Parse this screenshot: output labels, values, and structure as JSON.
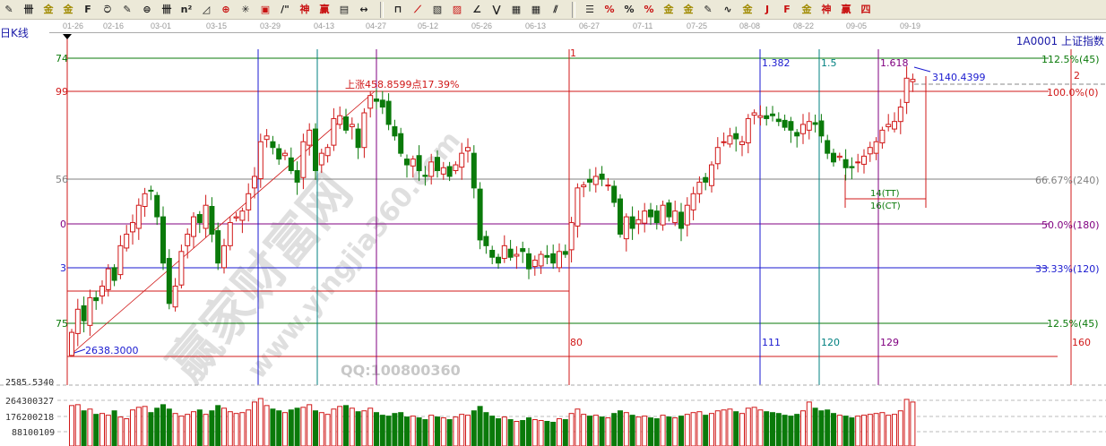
{
  "toolbar": {
    "icons": [
      {
        "name": "pen-icon",
        "glyph": "✎"
      },
      {
        "name": "parallel-lines-icon",
        "glyph": "卌"
      },
      {
        "name": "gold-split-icon",
        "glyph": "金"
      },
      {
        "name": "gold-split-2-icon",
        "glyph": "金"
      },
      {
        "name": "fib-f-icon",
        "glyph": "F"
      },
      {
        "name": "spiral-icon",
        "glyph": "ට"
      },
      {
        "name": "pen-line-icon",
        "glyph": "✎"
      },
      {
        "name": "circle-cycle-icon",
        "glyph": "⊜"
      },
      {
        "name": "time-lines-icon",
        "glyph": "卌"
      },
      {
        "name": "n2-icon",
        "glyph": "n²"
      },
      {
        "name": "triangle-icon",
        "glyph": "◿"
      },
      {
        "name": "target-icon",
        "glyph": "⊕"
      },
      {
        "name": "star-icon",
        "glyph": "✳"
      },
      {
        "name": "square-icon",
        "glyph": "▣"
      },
      {
        "name": "slash-icon",
        "glyph": "/\""
      },
      {
        "name": "shen-icon",
        "glyph": "神"
      },
      {
        "name": "ying-icon",
        "glyph": "赢"
      },
      {
        "name": "ruler-icon",
        "glyph": "▤"
      },
      {
        "name": "width-icon",
        "glyph": "↔"
      },
      {
        "name": "box-icon",
        "glyph": "⊓"
      },
      {
        "name": "fan-icon",
        "glyph": "⟋"
      },
      {
        "name": "gann-box-icon",
        "glyph": "▧"
      },
      {
        "name": "gann-square-icon",
        "glyph": "▨"
      },
      {
        "name": "angle-icon",
        "glyph": "∠"
      },
      {
        "name": "zigzag-icon",
        "glyph": "⋁"
      },
      {
        "name": "grid-icon",
        "glyph": "▦"
      },
      {
        "name": "grid-2-icon",
        "glyph": "▦"
      },
      {
        "name": "channel-icon",
        "glyph": "⫽"
      },
      {
        "name": "levels-icon",
        "glyph": "☰"
      },
      {
        "name": "percent-red-icon",
        "glyph": "%"
      },
      {
        "name": "percent-icon",
        "glyph": "%"
      },
      {
        "name": "percent-lines-icon",
        "glyph": "%"
      },
      {
        "name": "gold-circle-icon",
        "glyph": "金"
      },
      {
        "name": "gold-lines-icon",
        "glyph": "金"
      },
      {
        "name": "pen-bar-icon",
        "glyph": "✎"
      },
      {
        "name": "wave-icon",
        "glyph": "∿"
      },
      {
        "name": "gold-bar-icon",
        "glyph": "金"
      },
      {
        "name": "j-fan-icon",
        "glyph": "J"
      },
      {
        "name": "f-fan-icon",
        "glyph": "F"
      },
      {
        "name": "gold-fan-icon",
        "glyph": "金"
      },
      {
        "name": "shen-fan-icon",
        "glyph": "神"
      },
      {
        "name": "ying-fan-icon",
        "glyph": "赢"
      },
      {
        "name": "si-fan-icon",
        "glyph": "四"
      }
    ]
  },
  "header": {
    "period": "日K线",
    "symbol": "1A0001  上证指数"
  },
  "date_axis": [
    "01-26",
    "02-16",
    "03-01",
    "03-15",
    "03-29",
    "04-13",
    "04-27",
    "05-12",
    "05-26",
    "06-13",
    "06-27",
    "07-11",
    "07-25",
    "08-08",
    "08-22",
    "09-05",
    "09-19"
  ],
  "left_axis": {
    "l1": "74",
    "l2": "99",
    "l3": "56",
    "l4": "0",
    "l5": "3",
    "l6": "75",
    "bottom": "2585.5340"
  },
  "levels": {
    "p1125": "112.5%(45)",
    "p100": "100.0%(0)",
    "p6667": "66.67%(240)",
    "p50": "50.0%(180)",
    "p3333": "33.33%(120)",
    "p125": "12.5%(45)"
  },
  "time_lines": {
    "t1_top": "1",
    "t1_bot": "80",
    "t2_top": "1.382",
    "t2_bot": "111",
    "t3_top": "1.5",
    "t3_bot": "120",
    "t4_top": "1.618",
    "t4_bot": "129",
    "t5_top": "2",
    "t5_bot": "160"
  },
  "annotations": {
    "rise": "上涨458.8599点17.39%",
    "low": "2638.3000",
    "high": "3140.4399",
    "tt": "14(TT)",
    "ct": "16(CT)"
  },
  "volume_axis": {
    "v3": "264300327",
    "v2": "176200218",
    "v1": "88100109"
  },
  "watermark": {
    "site": "赢家财富网",
    "url": "www.yingjia360.com",
    "qq": "QQ:100800360"
  },
  "colors": {
    "up": "#d01818",
    "down": "#0a7a0a",
    "blue": "#1a1ad0",
    "teal": "#008080",
    "purple": "#800080",
    "grey": "#808080"
  },
  "chart_data": {
    "type": "candlestick",
    "closes": [
      2680,
      2720,
      2700,
      2740,
      2735,
      2760,
      2790,
      2770,
      2830,
      2850,
      2870,
      2900,
      2920,
      2925,
      2880,
      2800,
      2730,
      2760,
      2820,
      2850,
      2880,
      2870,
      2900,
      2850,
      2800,
      2830,
      2870,
      2880,
      2890,
      2920,
      2950,
      3010,
      3020,
      3000,
      2980,
      2990,
      2960,
      2940,
      3010,
      3030,
      2960,
      2990,
      3000,
      3050,
      3055,
      3030,
      3040,
      3000,
      3060,
      3090,
      3080,
      3070,
      3040,
      3020,
      2990,
      2970,
      2980,
      2960,
      2950,
      2975,
      2960,
      2965,
      2950,
      2970,
      2990,
      3000,
      2930,
      2840,
      2830,
      2810,
      2800,
      2830,
      2810,
      2815,
      2820,
      2790,
      2805,
      2815,
      2810,
      2800,
      2820,
      2815,
      2870,
      2930,
      2935,
      2940,
      2950,
      2945,
      2935,
      2905,
      2850,
      2880,
      2860,
      2875,
      2890,
      2880,
      2870,
      2900,
      2880,
      2890,
      2860,
      2900,
      2920,
      2940,
      2940,
      2970,
      3000,
      3010,
      3020,
      3015,
      3010,
      3050,
      3060,
      3055,
      3050,
      3055,
      3045,
      3035,
      3030,
      3020,
      3040,
      3045,
      3040,
      3020,
      2990,
      2975,
      2985,
      2965,
      2965,
      2975,
      2985,
      3000,
      3010,
      3030,
      3040,
      3045,
      3070,
      3120,
      3118
    ],
    "volumes": [
      230000000.0,
      235000000.0,
      200000000.0,
      210000000.0,
      180000000.0,
      185000000.0,
      175000000.0,
      200000000.0,
      165000000.0,
      155000000.0,
      205000000.0,
      220000000.0,
      225000000.0,
      190000000.0,
      215000000.0,
      235000000.0,
      210000000.0,
      185000000.0,
      170000000.0,
      180000000.0,
      195000000.0,
      205000000.0,
      180000000.0,
      200000000.0,
      230000000.0,
      215000000.0,
      195000000.0,
      185000000.0,
      190000000.0,
      205000000.0,
      250000000.0,
      270000000.0,
      230000000.0,
      210000000.0,
      200000000.0,
      190000000.0,
      205000000.0,
      215000000.0,
      220000000.0,
      235000000.0,
      200000000.0,
      190000000.0,
      180000000.0,
      210000000.0,
      225000000.0,
      230000000.0,
      215000000.0,
      195000000.0,
      200000000.0,
      215000000.0,
      190000000.0,
      175000000.0,
      170000000.0,
      185000000.0,
      190000000.0,
      165000000.0,
      170000000.0,
      160000000.0,
      150000000.0,
      175000000.0,
      165000000.0,
      160000000.0,
      150000000.0,
      165000000.0,
      180000000.0,
      175000000.0,
      200000000.0,
      225000000.0,
      190000000.0,
      170000000.0,
      155000000.0,
      165000000.0,
      150000000.0,
      140000000.0,
      145000000.0,
      160000000.0,
      150000000.0,
      145000000.0,
      140000000.0,
      135000000.0,
      155000000.0,
      150000000.0,
      185000000.0,
      210000000.0,
      180000000.0,
      170000000.0,
      175000000.0,
      165000000.0,
      160000000.0,
      185000000.0,
      200000000.0,
      190000000.0,
      175000000.0,
      165000000.0,
      170000000.0,
      160000000.0,
      155000000.0,
      175000000.0,
      165000000.0,
      160000000.0,
      170000000.0,
      180000000.0,
      190000000.0,
      195000000.0,
      175000000.0,
      185000000.0,
      200000000.0,
      205000000.0,
      210000000.0,
      195000000.0,
      185000000.0,
      215000000.0,
      220000000.0,
      205000000.0,
      195000000.0,
      190000000.0,
      185000000.0,
      175000000.0,
      170000000.0,
      180000000.0,
      200000000.0,
      250000000.0,
      215000000.0,
      200000000.0,
      205000000.0,
      185000000.0,
      175000000.0,
      170000000.0,
      160000000.0,
      170000000.0,
      175000000.0,
      180000000.0,
      185000000.0,
      190000000.0,
      175000000.0,
      180000000.0,
      200000000.0,
      265000000.0,
      250000000.0
    ],
    "price_low": 2638.3,
    "price_high": 3140.4399,
    "ylim": [
      2585.534,
      3165
    ]
  }
}
